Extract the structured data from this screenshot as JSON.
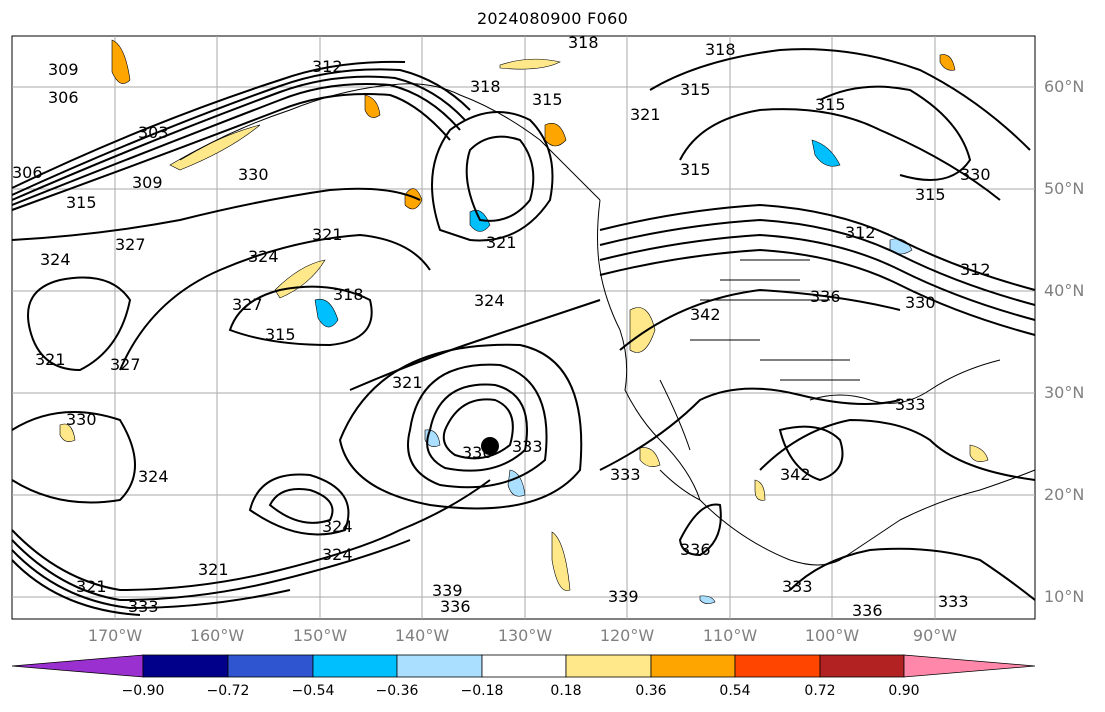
{
  "title": "2024080900 F060",
  "latitude_labels": [
    "60°N",
    "50°N",
    "40°N",
    "30°N",
    "20°N",
    "10°N"
  ],
  "longitude_labels": [
    "170°W",
    "160°W",
    "150°W",
    "140°W",
    "130°W",
    "120°W",
    "110°W",
    "100°W",
    "90°W"
  ],
  "colorbar": {
    "tick_labels": [
      "−0.90",
      "−0.72",
      "−0.54",
      "−0.36",
      "−0.18",
      "0.18",
      "0.36",
      "0.54",
      "0.72",
      "0.90"
    ],
    "colors": [
      "#9b30d0",
      "#00008b",
      "#3055d0",
      "#00bfff",
      "#aadfff",
      "#ffffff",
      "#ffe88a",
      "#ffa500",
      "#ff4500",
      "#b22222",
      "#ff88aa"
    ]
  },
  "contour_labels": [
    "309",
    "306",
    "303",
    "306",
    "312",
    "318",
    "315",
    "318",
    "321",
    "315",
    "315",
    "318",
    "315",
    "315",
    "330",
    "309",
    "315",
    "324",
    "327",
    "321",
    "321",
    "324",
    "327",
    "318",
    "315",
    "312",
    "336",
    "330",
    "312",
    "324",
    "342",
    "321",
    "327",
    "321",
    "333",
    "330",
    "324",
    "330",
    "333",
    "333",
    "342",
    "333",
    "324",
    "324",
    "321",
    "321",
    "336",
    "339",
    "336",
    "339",
    "336",
    "333",
    "333",
    "330"
  ],
  "center_marker": "low-center-dot"
}
